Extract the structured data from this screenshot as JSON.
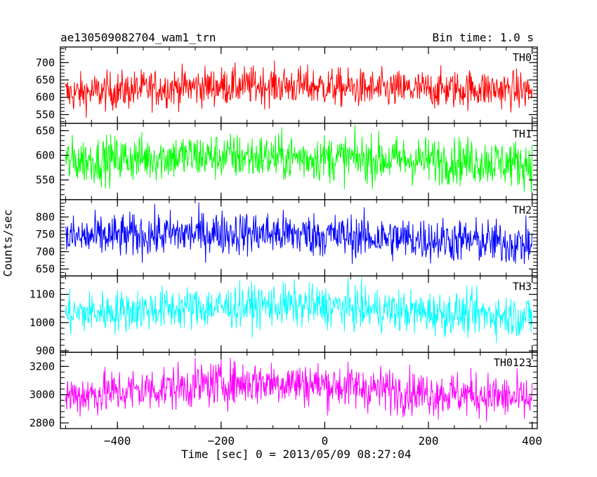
{
  "header": {
    "title": "ae130509082704_wam1_trn",
    "bin_time": "Bin time: 1.0 s"
  },
  "chart_data": {
    "type": "line",
    "title": "ae130509082704_wam1_trn",
    "xlabel": "Time [sec] 0 = 2013/05/09 08:27:04",
    "ylabel": "Counts/sec",
    "xlim": [
      -510,
      410
    ],
    "xticks": [
      -400,
      -200,
      0,
      200,
      400
    ],
    "bin_time_s": 1.0,
    "grid": false,
    "panels": [
      {
        "name": "TH0",
        "color": "#ff0000",
        "ylim": [
          525,
          745
        ],
        "yticks": [
          550,
          600,
          650,
          700
        ],
        "mean": 622,
        "amplitude": 28,
        "profile": [
          {
            "t": -500,
            "v": 610
          },
          {
            "t": -300,
            "v": 628
          },
          {
            "t": -200,
            "v": 632
          },
          {
            "t": -100,
            "v": 635
          },
          {
            "t": 0,
            "v": 630
          },
          {
            "t": 100,
            "v": 622
          },
          {
            "t": 200,
            "v": 622
          },
          {
            "t": 300,
            "v": 625
          },
          {
            "t": 400,
            "v": 618
          }
        ]
      },
      {
        "name": "TH1",
        "color": "#00ff00",
        "ylim": [
          510,
          665
        ],
        "yticks": [
          550,
          600,
          650
        ],
        "mean": 592,
        "amplitude": 24,
        "profile": [
          {
            "t": -500,
            "v": 588
          },
          {
            "t": -300,
            "v": 597
          },
          {
            "t": -200,
            "v": 598
          },
          {
            "t": -100,
            "v": 596
          },
          {
            "t": 0,
            "v": 595
          },
          {
            "t": 100,
            "v": 592
          },
          {
            "t": 200,
            "v": 590
          },
          {
            "t": 300,
            "v": 588
          },
          {
            "t": 400,
            "v": 582
          }
        ]
      },
      {
        "name": "TH2",
        "color": "#0000ff",
        "ylim": [
          630,
          850
        ],
        "yticks": [
          650,
          700,
          750,
          800
        ],
        "mean": 745,
        "amplitude": 32,
        "profile": [
          {
            "t": -500,
            "v": 740
          },
          {
            "t": -300,
            "v": 750
          },
          {
            "t": -200,
            "v": 755
          },
          {
            "t": -100,
            "v": 752
          },
          {
            "t": 0,
            "v": 748
          },
          {
            "t": 100,
            "v": 740
          },
          {
            "t": 200,
            "v": 735
          },
          {
            "t": 300,
            "v": 730
          },
          {
            "t": 400,
            "v": 720
          }
        ]
      },
      {
        "name": "TH3",
        "color": "#00ffff",
        "ylim": [
          895,
          1165
        ],
        "yticks": [
          900,
          1000,
          1100
        ],
        "mean": 1040,
        "amplitude": 38,
        "profile": [
          {
            "t": -500,
            "v": 1030
          },
          {
            "t": -300,
            "v": 1050
          },
          {
            "t": -200,
            "v": 1055
          },
          {
            "t": -100,
            "v": 1062
          },
          {
            "t": 0,
            "v": 1058
          },
          {
            "t": 100,
            "v": 1045
          },
          {
            "t": 200,
            "v": 1035
          },
          {
            "t": 300,
            "v": 1030
          },
          {
            "t": 400,
            "v": 1020
          }
        ]
      },
      {
        "name": "TH0123",
        "color": "#ff00ff",
        "ylim": [
          2760,
          3300
        ],
        "yticks": [
          2800,
          3000,
          3200
        ],
        "mean": 3030,
        "amplitude": 80,
        "profile": [
          {
            "t": -500,
            "v": 2990
          },
          {
            "t": -300,
            "v": 3050
          },
          {
            "t": -200,
            "v": 3080
          },
          {
            "t": -100,
            "v": 3090
          },
          {
            "t": 0,
            "v": 3070
          },
          {
            "t": 100,
            "v": 3040
          },
          {
            "t": 200,
            "v": 3010
          },
          {
            "t": 300,
            "v": 3000
          },
          {
            "t": 400,
            "v": 2960
          }
        ]
      }
    ]
  }
}
